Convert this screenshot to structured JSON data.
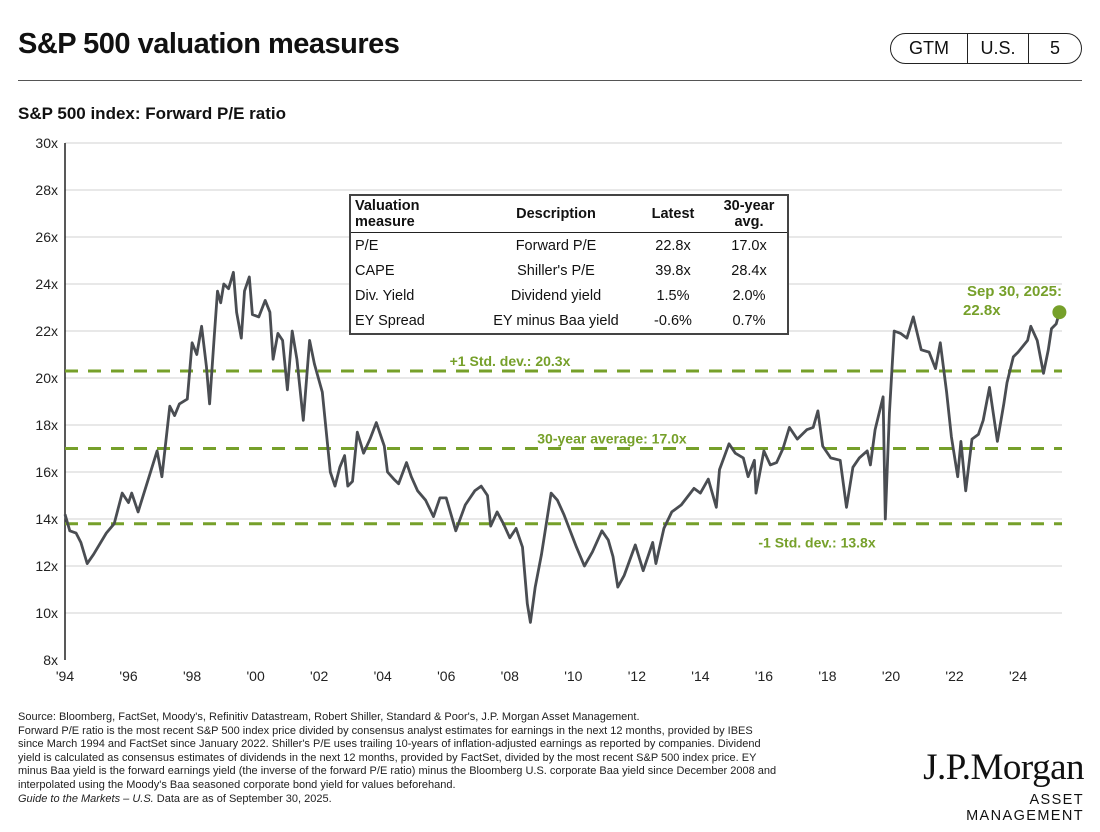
{
  "header": {
    "title": "S&P 500 valuation measures",
    "badge": [
      "GTM",
      "U.S.",
      "5"
    ]
  },
  "chart_data": {
    "type": "line",
    "title": "S&P 500 index: Forward P/E ratio",
    "xlabel": "",
    "ylabel": "",
    "ylim": [
      8,
      30
    ],
    "xlim": [
      1994,
      2025.75
    ],
    "y_ticks": [
      "8x",
      "10x",
      "12x",
      "14x",
      "16x",
      "18x",
      "20x",
      "22x",
      "24x",
      "26x",
      "28x",
      "30x"
    ],
    "x_ticks": [
      "'94",
      "'96",
      "'98",
      "'00",
      "'02",
      "'04",
      "'06",
      "'08",
      "'10",
      "'12",
      "'14",
      "'16",
      "'18",
      "'20",
      "'22",
      "'24"
    ],
    "grid": "horizontal",
    "series": [
      {
        "name": "Forward P/E",
        "color": "#4a4d52",
        "points": [
          [
            1994.0,
            14.2
          ],
          [
            1994.15,
            13.5
          ],
          [
            1994.35,
            13.4
          ],
          [
            1994.5,
            13.0
          ],
          [
            1994.7,
            12.1
          ],
          [
            1994.9,
            12.5
          ],
          [
            1995.3,
            13.4
          ],
          [
            1995.55,
            13.8
          ],
          [
            1995.8,
            15.1
          ],
          [
            1996.0,
            14.7
          ],
          [
            1996.1,
            15.1
          ],
          [
            1996.3,
            14.3
          ],
          [
            1996.6,
            15.6
          ],
          [
            1996.9,
            16.9
          ],
          [
            1997.05,
            15.8
          ],
          [
            1997.3,
            18.8
          ],
          [
            1997.45,
            18.4
          ],
          [
            1997.6,
            18.9
          ],
          [
            1997.85,
            19.1
          ],
          [
            1998.0,
            21.5
          ],
          [
            1998.15,
            21.0
          ],
          [
            1998.3,
            22.2
          ],
          [
            1998.45,
            20.5
          ],
          [
            1998.55,
            18.9
          ],
          [
            1998.7,
            21.8
          ],
          [
            1998.8,
            23.7
          ],
          [
            1998.9,
            23.2
          ],
          [
            1999.0,
            24.0
          ],
          [
            1999.15,
            23.8
          ],
          [
            1999.3,
            24.5
          ],
          [
            1999.4,
            22.8
          ],
          [
            1999.55,
            21.7
          ],
          [
            1999.65,
            23.7
          ],
          [
            1999.8,
            24.3
          ],
          [
            1999.9,
            22.7
          ],
          [
            2000.1,
            22.6
          ],
          [
            2000.3,
            23.3
          ],
          [
            2000.45,
            22.8
          ],
          [
            2000.55,
            20.8
          ],
          [
            2000.7,
            21.9
          ],
          [
            2000.85,
            21.6
          ],
          [
            2001.0,
            19.5
          ],
          [
            2001.15,
            22.0
          ],
          [
            2001.3,
            20.8
          ],
          [
            2001.5,
            18.2
          ],
          [
            2001.7,
            21.6
          ],
          [
            2001.85,
            20.6
          ],
          [
            2002.1,
            19.4
          ],
          [
            2002.35,
            16.0
          ],
          [
            2002.5,
            15.4
          ],
          [
            2002.65,
            16.2
          ],
          [
            2002.8,
            16.7
          ],
          [
            2002.9,
            15.4
          ],
          [
            2003.05,
            15.6
          ],
          [
            2003.2,
            17.7
          ],
          [
            2003.4,
            16.8
          ],
          [
            2003.6,
            17.4
          ],
          [
            2003.8,
            18.1
          ],
          [
            2004.05,
            17.1
          ],
          [
            2004.15,
            16.0
          ],
          [
            2004.35,
            15.7
          ],
          [
            2004.5,
            15.5
          ],
          [
            2004.75,
            16.4
          ],
          [
            2004.9,
            15.8
          ],
          [
            2005.1,
            15.2
          ],
          [
            2005.35,
            14.8
          ],
          [
            2005.6,
            14.1
          ],
          [
            2005.8,
            14.9
          ],
          [
            2006.0,
            14.9
          ],
          [
            2006.3,
            13.5
          ],
          [
            2006.6,
            14.6
          ],
          [
            2006.9,
            15.2
          ],
          [
            2007.1,
            15.4
          ],
          [
            2007.3,
            15.0
          ],
          [
            2007.4,
            13.7
          ],
          [
            2007.6,
            14.3
          ],
          [
            2007.8,
            13.8
          ],
          [
            2008.0,
            13.2
          ],
          [
            2008.2,
            13.6
          ],
          [
            2008.4,
            12.8
          ],
          [
            2008.55,
            10.4
          ],
          [
            2008.65,
            9.6
          ],
          [
            2008.8,
            11.1
          ],
          [
            2009.0,
            12.5
          ],
          [
            2009.3,
            15.1
          ],
          [
            2009.5,
            14.8
          ],
          [
            2009.7,
            14.2
          ],
          [
            2010.1,
            12.8
          ],
          [
            2010.35,
            12.0
          ],
          [
            2010.6,
            12.6
          ],
          [
            2010.9,
            13.5
          ],
          [
            2011.1,
            13.1
          ],
          [
            2011.25,
            12.4
          ],
          [
            2011.4,
            11.1
          ],
          [
            2011.6,
            11.6
          ],
          [
            2011.95,
            12.9
          ],
          [
            2012.2,
            11.8
          ],
          [
            2012.5,
            13.0
          ],
          [
            2012.6,
            12.1
          ],
          [
            2012.85,
            13.6
          ],
          [
            2013.1,
            14.3
          ],
          [
            2013.4,
            14.6
          ],
          [
            2013.8,
            15.3
          ],
          [
            2014.0,
            15.1
          ],
          [
            2014.25,
            15.7
          ],
          [
            2014.5,
            14.5
          ],
          [
            2014.6,
            16.1
          ],
          [
            2014.9,
            17.2
          ],
          [
            2015.1,
            16.8
          ],
          [
            2015.35,
            16.6
          ],
          [
            2015.5,
            15.8
          ],
          [
            2015.7,
            16.5
          ],
          [
            2015.75,
            15.1
          ],
          [
            2016.0,
            16.9
          ],
          [
            2016.2,
            16.3
          ],
          [
            2016.4,
            16.4
          ],
          [
            2016.6,
            17.0
          ],
          [
            2016.8,
            17.9
          ],
          [
            2017.05,
            17.4
          ],
          [
            2017.35,
            17.8
          ],
          [
            2017.55,
            17.9
          ],
          [
            2017.7,
            18.6
          ],
          [
            2017.85,
            17.1
          ],
          [
            2018.1,
            16.6
          ],
          [
            2018.4,
            16.5
          ],
          [
            2018.6,
            14.5
          ],
          [
            2018.8,
            16.2
          ],
          [
            2019.0,
            16.6
          ],
          [
            2019.25,
            16.9
          ],
          [
            2019.35,
            16.3
          ],
          [
            2019.5,
            17.8
          ],
          [
            2019.75,
            19.2
          ],
          [
            2019.82,
            14.0
          ],
          [
            2019.95,
            18.5
          ],
          [
            2020.1,
            22.0
          ],
          [
            2020.3,
            21.9
          ],
          [
            2020.5,
            21.7
          ],
          [
            2020.7,
            22.6
          ],
          [
            2020.95,
            21.2
          ],
          [
            2021.2,
            21.1
          ],
          [
            2021.4,
            20.4
          ],
          [
            2021.55,
            21.5
          ],
          [
            2021.75,
            19.4
          ],
          [
            2021.9,
            17.5
          ],
          [
            2022.1,
            15.8
          ],
          [
            2022.2,
            17.3
          ],
          [
            2022.35,
            15.2
          ],
          [
            2022.55,
            17.4
          ],
          [
            2022.75,
            17.6
          ],
          [
            2022.9,
            18.2
          ],
          [
            2023.1,
            19.6
          ],
          [
            2023.35,
            17.3
          ],
          [
            2023.55,
            18.9
          ],
          [
            2023.65,
            19.8
          ],
          [
            2023.85,
            20.9
          ],
          [
            2024.0,
            21.1
          ],
          [
            2024.3,
            21.6
          ],
          [
            2024.4,
            22.2
          ],
          [
            2024.6,
            21.6
          ],
          [
            2024.8,
            20.2
          ],
          [
            2024.95,
            21.2
          ],
          [
            2025.05,
            22.1
          ],
          [
            2025.2,
            22.3
          ],
          [
            2025.3,
            22.8
          ]
        ]
      }
    ],
    "reference_lines": [
      {
        "label": "+1 Std. dev.: 20.3x",
        "value": 20.3
      },
      {
        "label": "30-year average: 17.0x",
        "value": 17.0
      },
      {
        "label": "-1 Std. dev.: 13.8x",
        "value": 13.8
      }
    ],
    "reference_color": "#76a02a",
    "annotation": {
      "line1": "Sep 30, 2025:",
      "line2": "22.8x",
      "value": 22.8
    }
  },
  "valuation_table": {
    "headers": [
      "Valuation measure",
      "Description",
      "Latest",
      "30-year avg."
    ],
    "rows": [
      [
        "P/E",
        "Forward P/E",
        "22.8x",
        "17.0x"
      ],
      [
        "CAPE",
        "Shiller's P/E",
        "39.8x",
        "28.4x"
      ],
      [
        "Div. Yield",
        "Dividend yield",
        "1.5%",
        "2.0%"
      ],
      [
        "EY Spread",
        "EY minus Baa yield",
        "-0.6%",
        "0.7%"
      ]
    ]
  },
  "footnote": {
    "source": "Source: Bloomberg, FactSet, Moody's, Refinitiv Datastream, Robert Shiller, Standard & Poor's, J.P. Morgan Asset Management.",
    "body": "Forward P/E ratio is the most recent S&P 500 index price divided by consensus analyst estimates for earnings in the next 12 months, provided by IBES since March 1994 and FactSet since January 2022. Shiller's P/E uses trailing 10-years of inflation-adjusted earnings as reported by companies. Dividend yield is calculated as consensus estimates of dividends in the next 12 months, provided by FactSet, divided by the most recent S&P 500 index price. EY minus Baa yield is the forward earnings yield (the inverse of the forward P/E ratio) minus the Bloomberg U.S. corporate Baa yield since December 2008 and interpolated using the Moody's Baa seasoned corporate bond yield for values beforehand.",
    "guide_italic": "Guide to the Markets – U.S.",
    "asof": " Data are as of September 30, 2025."
  },
  "logo": {
    "name": "J.P.Morgan",
    "tagline": "ASSET MANAGEMENT"
  }
}
